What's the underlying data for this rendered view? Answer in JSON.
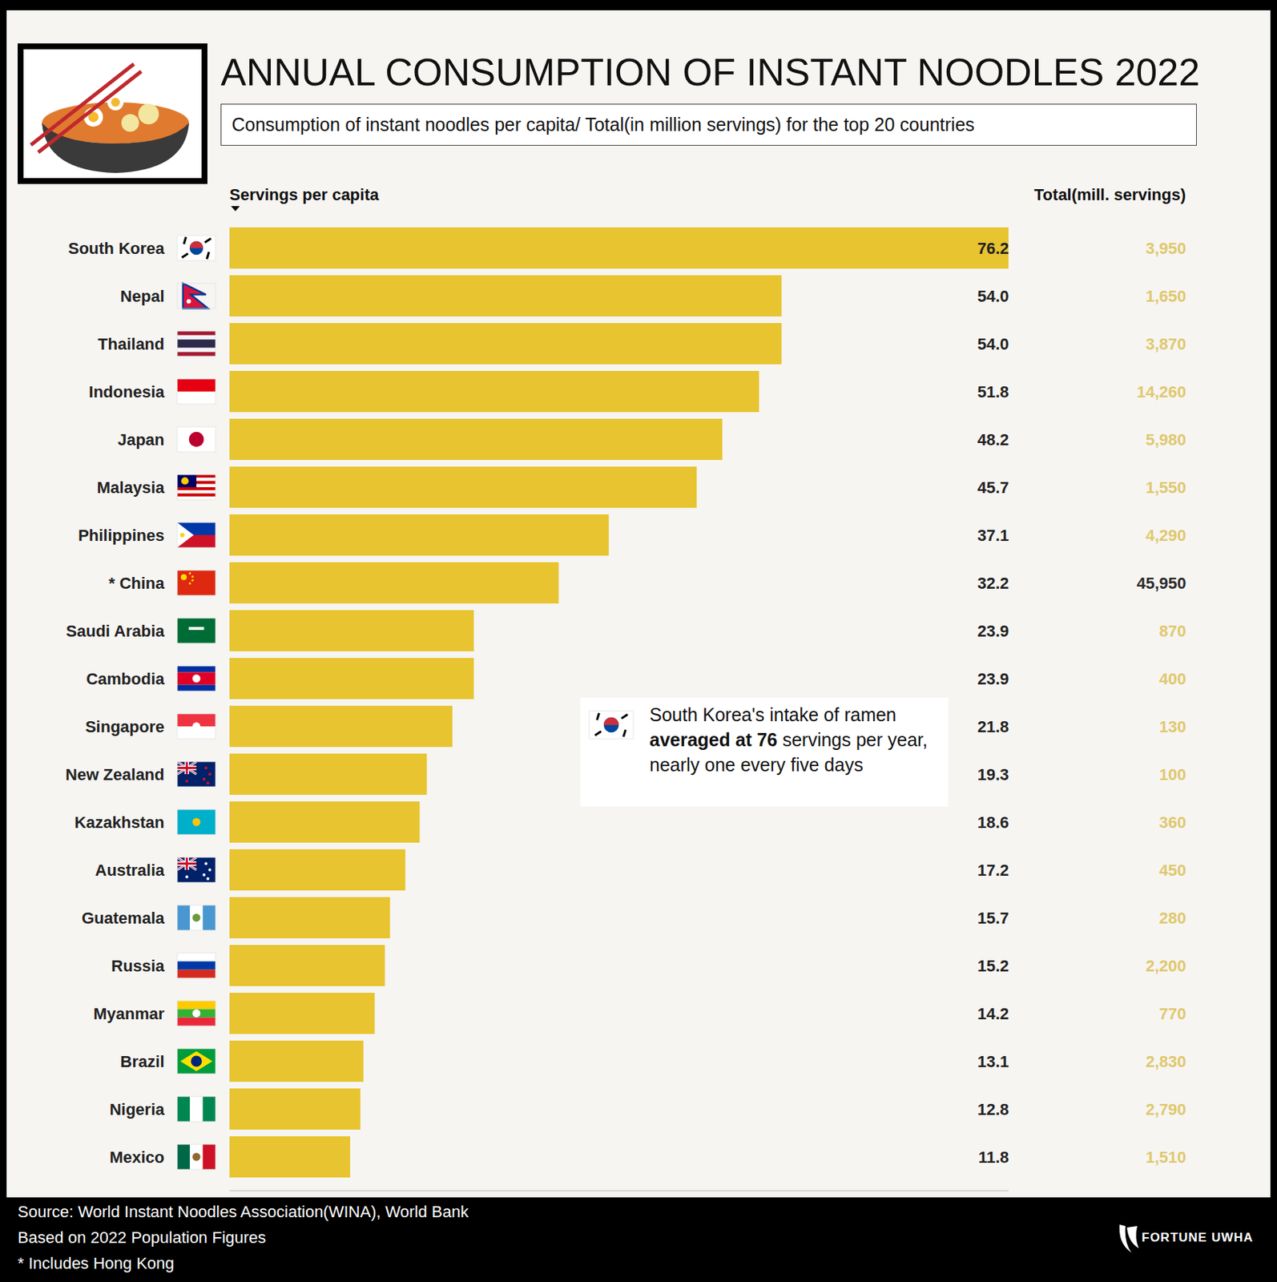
{
  "chart_data": {
    "type": "bar",
    "orientation": "horizontal",
    "title": "ANNUAL CONSUMPTION OF INSTANT NOODLES 2022",
    "subtitle": "Consumption of instant noodles per capita/ Total(in million servings) for the top 20 countries",
    "x_label": "Servings per capita",
    "totals_label": "Total(mill. servings)",
    "categories": [
      "South Korea",
      "Nepal",
      "Thailand",
      "Indonesia",
      "Japan",
      "Malaysia",
      "Philippines",
      "* China",
      "Saudi Arabia",
      "Cambodia",
      "Singapore",
      "New Zealand",
      "Kazakhstan",
      "Australia",
      "Guatemala",
      "Russia",
      "Myanmar",
      "Brazil",
      "Nigeria",
      "Mexico"
    ],
    "values": [
      76.2,
      54.0,
      54.0,
      51.8,
      48.2,
      45.7,
      37.1,
      32.2,
      23.9,
      23.9,
      21.8,
      19.3,
      18.6,
      17.2,
      15.7,
      15.2,
      14.2,
      13.1,
      12.8,
      11.8
    ],
    "value_labels": [
      "76.2",
      "54.0",
      "54.0",
      "51.8",
      "48.2",
      "45.7",
      "37.1",
      "32.2",
      "23.9",
      "23.9",
      "21.8",
      "19.3",
      "18.6",
      "17.2",
      "15.7",
      "15.2",
      "14.2",
      "13.1",
      "12.8",
      "11.8"
    ],
    "totals": [
      3950,
      1650,
      3870,
      14260,
      5980,
      1550,
      4290,
      45950,
      870,
      400,
      130,
      100,
      360,
      450,
      280,
      2200,
      770,
      2830,
      2790,
      1510
    ],
    "totals_labels": [
      "3,950",
      "1,650",
      "3,870",
      "14,260",
      "5,980",
      "1,550",
      "4,290",
      "45,950",
      "870",
      "400",
      "130",
      "100",
      "360",
      "450",
      "280",
      "2,200",
      "770",
      "2,830",
      "2,790",
      "1,510"
    ],
    "color": "#e8c430",
    "xlim": [
      0,
      76.2
    ],
    "data_labels": true,
    "tick_labels": "y",
    "grid": false,
    "annotation": {
      "text": "South Korea's intake of ramen averaged at 76 servings per year, nearly one every five days",
      "bold": "averaged at 76"
    },
    "notes": [
      "Source: World Instant Noodles Association(WINA), World Bank",
      "Based on 2022 Population Figures",
      "* Includes Hong Kong"
    ],
    "logo": "FORTUNE UWHA"
  }
}
